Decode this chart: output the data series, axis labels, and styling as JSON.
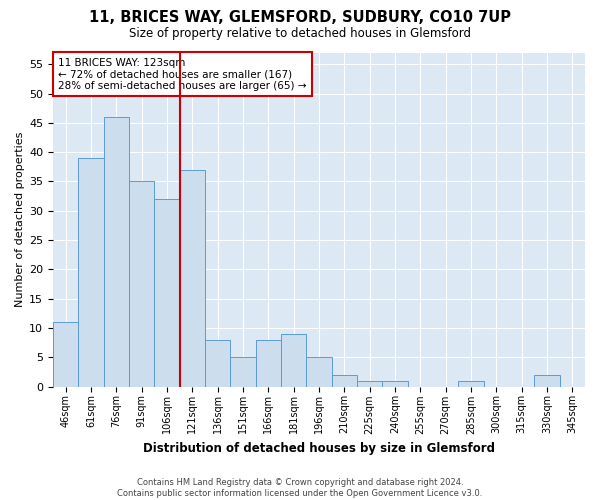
{
  "title": "11, BRICES WAY, GLEMSFORD, SUDBURY, CO10 7UP",
  "subtitle": "Size of property relative to detached houses in Glemsford",
  "xlabel": "Distribution of detached houses by size in Glemsford",
  "ylabel": "Number of detached properties",
  "categories": [
    "46sqm",
    "61sqm",
    "76sqm",
    "91sqm",
    "106sqm",
    "121sqm",
    "136sqm",
    "151sqm",
    "166sqm",
    "181sqm",
    "196sqm",
    "210sqm",
    "225sqm",
    "240sqm",
    "255sqm",
    "270sqm",
    "285sqm",
    "300sqm",
    "315sqm",
    "330sqm",
    "345sqm"
  ],
  "values": [
    11,
    39,
    46,
    35,
    32,
    37,
    8,
    5,
    8,
    9,
    5,
    2,
    1,
    1,
    0,
    0,
    1,
    0,
    0,
    2,
    0
  ],
  "bar_color": "#ccdded",
  "bar_edgecolor": "#5b9bd5",
  "vline_color": "#cc0000",
  "annotation_line1": "11 BRICES WAY: 123sqm",
  "annotation_line2": "← 72% of detached houses are smaller (167)",
  "annotation_line3": "28% of semi-detached houses are larger (65) →",
  "annotation_box_color": "#cc0000",
  "ylim": [
    0,
    57
  ],
  "yticks": [
    0,
    5,
    10,
    15,
    20,
    25,
    30,
    35,
    40,
    45,
    50,
    55
  ],
  "footer_line1": "Contains HM Land Registry data © Crown copyright and database right 2024.",
  "footer_line2": "Contains public sector information licensed under the Open Government Licence v3.0.",
  "bg_color": "#ffffff",
  "plot_bg_color": "#dce9f5"
}
